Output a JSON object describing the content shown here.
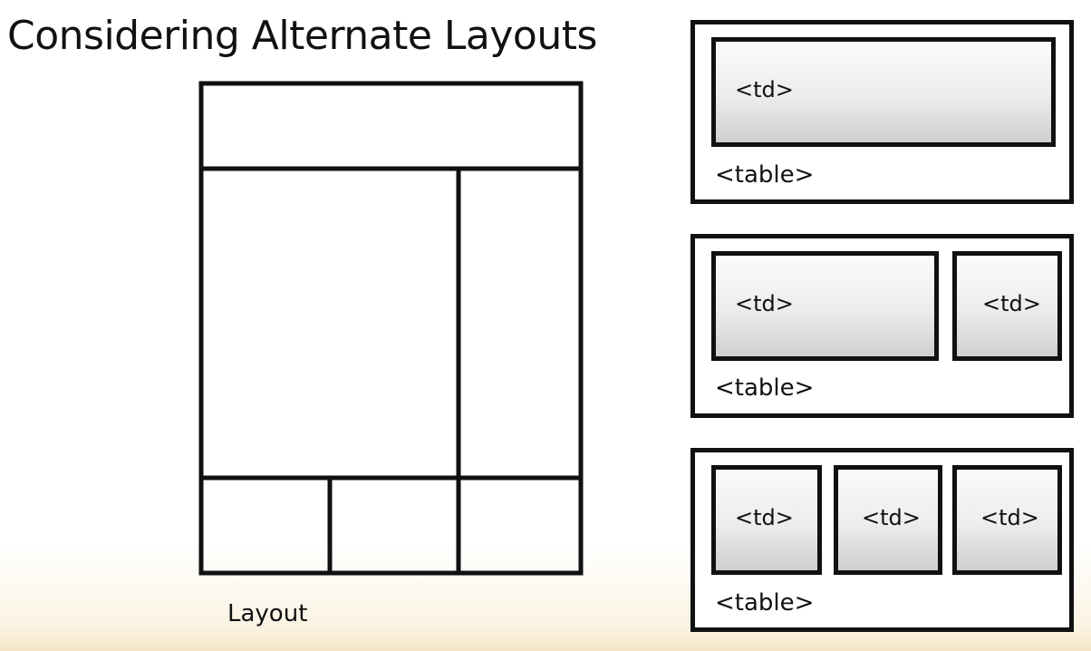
{
  "title": "Considering Alternate Layouts",
  "layout_caption": "Layout",
  "tables": [
    {
      "label": "<table>",
      "cells": [
        "<td>"
      ]
    },
    {
      "label": "<table>",
      "cells": [
        "<td>",
        "<td>"
      ]
    },
    {
      "label": "<table>",
      "cells": [
        "<td>",
        "<td>",
        "<td>"
      ]
    }
  ]
}
